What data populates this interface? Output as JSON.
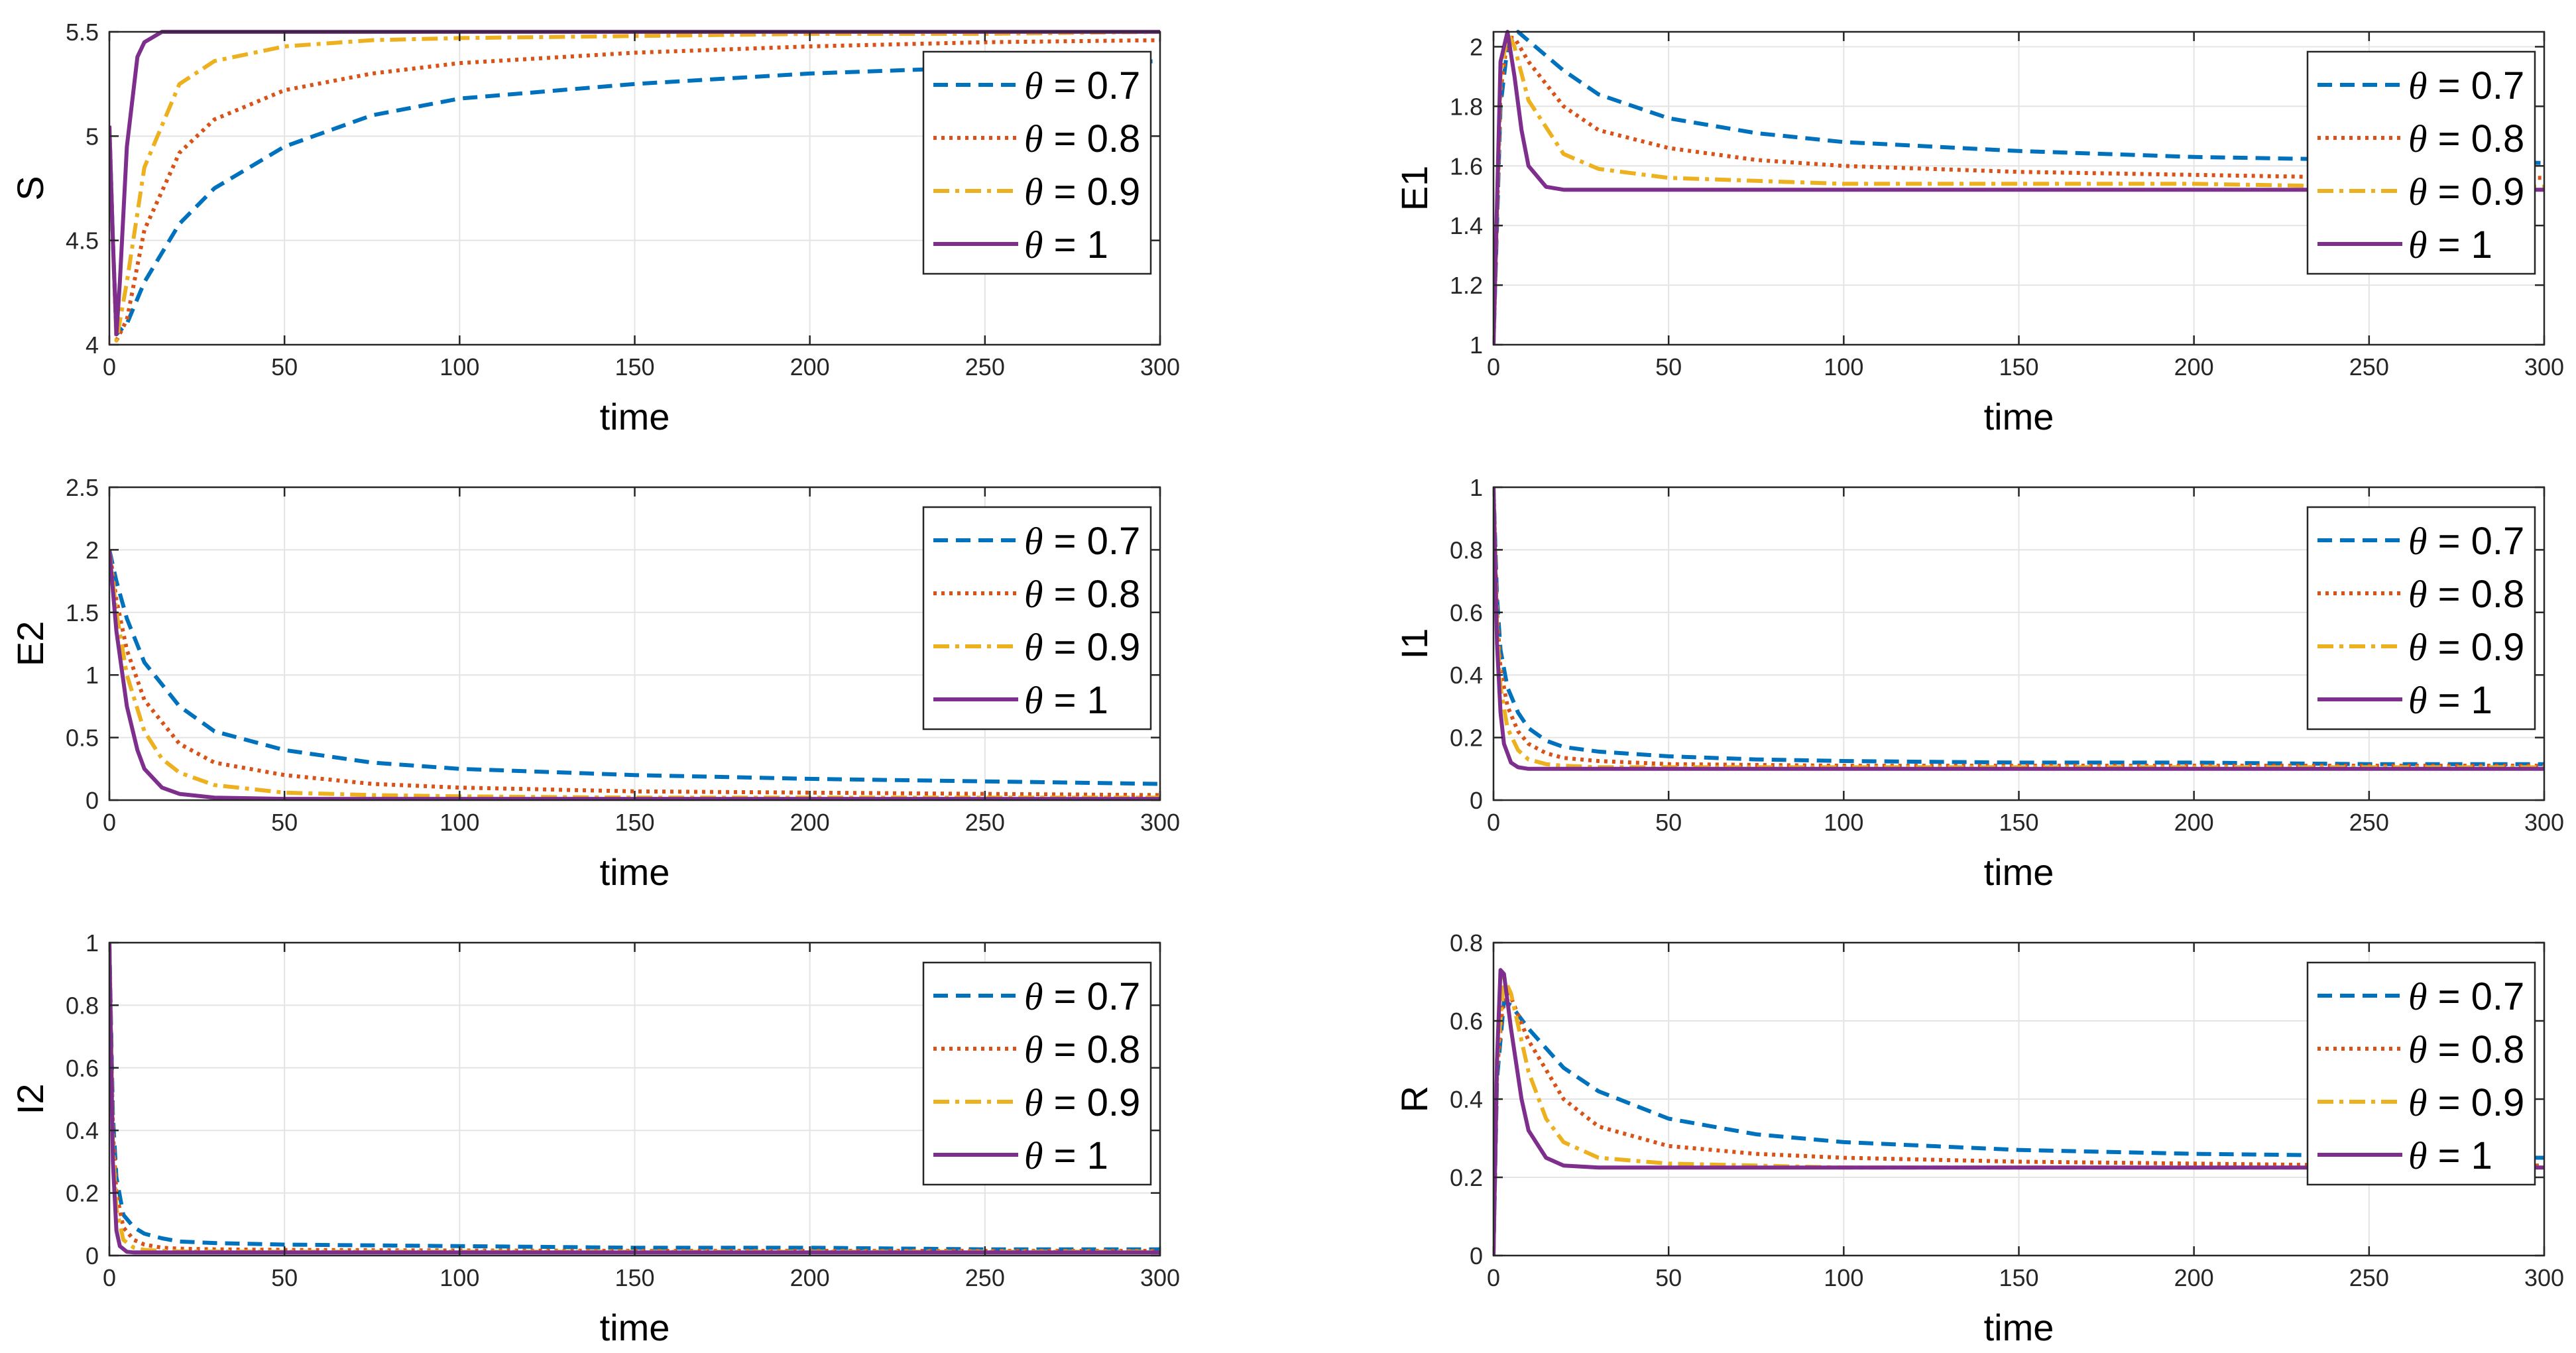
{
  "chart_data": [
    {
      "type": "line",
      "title": "",
      "xlabel": "time",
      "ylabel": "S",
      "xlim": [
        0,
        300
      ],
      "ylim": [
        4,
        5.5
      ],
      "xticks": [
        "0",
        "50",
        "100",
        "150",
        "200",
        "250",
        "300"
      ],
      "yticks": [
        "4",
        "4.5",
        "5",
        "5.5"
      ],
      "grid": true,
      "legend_position": "top-right",
      "series": [
        {
          "name": "θ = 0.7",
          "x": [
            0,
            1,
            2,
            5,
            10,
            20,
            30,
            50,
            75,
            100,
            150,
            200,
            250,
            300
          ],
          "y": [
            5.05,
            4.5,
            4.05,
            4.1,
            4.3,
            4.58,
            4.75,
            4.95,
            5.1,
            5.18,
            5.25,
            5.3,
            5.33,
            5.36
          ]
        },
        {
          "name": "θ = 0.8",
          "x": [
            0,
            1,
            2,
            5,
            10,
            20,
            30,
            50,
            75,
            100,
            150,
            200,
            250,
            300
          ],
          "y": [
            5.05,
            4.5,
            4.02,
            4.12,
            4.55,
            4.92,
            5.08,
            5.22,
            5.3,
            5.35,
            5.4,
            5.43,
            5.45,
            5.46
          ]
        },
        {
          "name": "θ = 0.9",
          "x": [
            0,
            1,
            2,
            5,
            10,
            20,
            30,
            50,
            75,
            100,
            150,
            200,
            250,
            300
          ],
          "y": [
            5.05,
            4.5,
            4.02,
            4.3,
            4.85,
            5.25,
            5.36,
            5.43,
            5.46,
            5.47,
            5.48,
            5.49,
            5.49,
            5.5
          ]
        },
        {
          "name": "θ = 1",
          "x": [
            0,
            1,
            2,
            3,
            5,
            8,
            10,
            15,
            20,
            30,
            50,
            100,
            150,
            200,
            250,
            300
          ],
          "y": [
            5.05,
            4.5,
            4.05,
            4.3,
            4.95,
            5.38,
            5.45,
            5.5,
            5.5,
            5.5,
            5.5,
            5.5,
            5.5,
            5.5,
            5.5,
            5.5
          ]
        }
      ]
    },
    {
      "type": "line",
      "title": "",
      "xlabel": "time",
      "ylabel": "E1",
      "xlim": [
        0,
        300
      ],
      "ylim": [
        1,
        2.05
      ],
      "xticks": [
        "0",
        "50",
        "100",
        "150",
        "200",
        "250",
        "300"
      ],
      "yticks": [
        "1",
        "1.2",
        "1.4",
        "1.6",
        "1.8",
        "2"
      ],
      "grid": true,
      "legend_position": "top-right",
      "series": [
        {
          "name": "θ = 0.7",
          "x": [
            0,
            2,
            4,
            7,
            10,
            20,
            30,
            50,
            75,
            100,
            150,
            200,
            250,
            300
          ],
          "y": [
            1,
            1.8,
            2.0,
            2.05,
            2.02,
            1.92,
            1.84,
            1.76,
            1.71,
            1.68,
            1.65,
            1.63,
            1.62,
            1.61
          ]
        },
        {
          "name": "θ = 0.8",
          "x": [
            0,
            2,
            4,
            6,
            10,
            20,
            30,
            50,
            75,
            100,
            150,
            200,
            250,
            300
          ],
          "y": [
            1,
            1.85,
            2.03,
            2.03,
            1.95,
            1.8,
            1.72,
            1.66,
            1.62,
            1.6,
            1.58,
            1.57,
            1.56,
            1.56
          ]
        },
        {
          "name": "θ = 0.9",
          "x": [
            0,
            2,
            4,
            6,
            10,
            20,
            30,
            50,
            75,
            100,
            150,
            200,
            250,
            300
          ],
          "y": [
            1,
            1.9,
            2.05,
            2.0,
            1.82,
            1.64,
            1.59,
            1.56,
            1.55,
            1.54,
            1.54,
            1.54,
            1.53,
            1.53
          ]
        },
        {
          "name": "θ = 1",
          "x": [
            0,
            2,
            4,
            6,
            8,
            10,
            15,
            20,
            30,
            50,
            100,
            150,
            200,
            250,
            300
          ],
          "y": [
            1,
            1.95,
            2.05,
            1.9,
            1.72,
            1.6,
            1.53,
            1.52,
            1.52,
            1.52,
            1.52,
            1.52,
            1.52,
            1.52,
            1.52
          ]
        }
      ]
    },
    {
      "type": "line",
      "title": "",
      "xlabel": "time",
      "ylabel": "E2",
      "xlim": [
        0,
        300
      ],
      "ylim": [
        0,
        2.5
      ],
      "xticks": [
        "0",
        "50",
        "100",
        "150",
        "200",
        "250",
        "300"
      ],
      "yticks": [
        "0",
        "0.5",
        "1",
        "1.5",
        "2",
        "2.5"
      ],
      "grid": true,
      "legend_position": "top-right",
      "series": [
        {
          "name": "θ = 0.7",
          "x": [
            0,
            2,
            5,
            10,
            20,
            30,
            50,
            75,
            100,
            150,
            200,
            250,
            300
          ],
          "y": [
            2,
            1.75,
            1.45,
            1.1,
            0.75,
            0.55,
            0.4,
            0.3,
            0.25,
            0.2,
            0.17,
            0.15,
            0.13
          ]
        },
        {
          "name": "θ = 0.8",
          "x": [
            0,
            2,
            5,
            10,
            20,
            30,
            50,
            75,
            100,
            150,
            200,
            250,
            300
          ],
          "y": [
            2,
            1.6,
            1.2,
            0.8,
            0.45,
            0.3,
            0.2,
            0.13,
            0.1,
            0.07,
            0.06,
            0.05,
            0.04
          ]
        },
        {
          "name": "θ = 0.9",
          "x": [
            0,
            2,
            5,
            10,
            15,
            20,
            30,
            50,
            75,
            100,
            150,
            200,
            250,
            300
          ],
          "y": [
            2,
            1.5,
            1.0,
            0.55,
            0.33,
            0.22,
            0.12,
            0.06,
            0.04,
            0.03,
            0.02,
            0.02,
            0.02,
            0.02
          ]
        },
        {
          "name": "θ = 1",
          "x": [
            0,
            2,
            5,
            8,
            10,
            15,
            20,
            30,
            50,
            100,
            150,
            200,
            250,
            300
          ],
          "y": [
            2,
            1.35,
            0.75,
            0.4,
            0.25,
            0.1,
            0.05,
            0.02,
            0.01,
            0.01,
            0.01,
            0.01,
            0.01,
            0.01
          ]
        }
      ]
    },
    {
      "type": "line",
      "title": "",
      "xlabel": "time",
      "ylabel": "I1",
      "xlim": [
        0,
        300
      ],
      "ylim": [
        0,
        1
      ],
      "xticks": [
        "0",
        "50",
        "100",
        "150",
        "200",
        "250",
        "300"
      ],
      "yticks": [
        "0",
        "0.2",
        "0.4",
        "0.6",
        "0.8",
        "1"
      ],
      "grid": true,
      "legend_position": "top-right",
      "series": [
        {
          "name": "θ = 0.7",
          "x": [
            0,
            1,
            2,
            4,
            7,
            10,
            15,
            20,
            30,
            50,
            75,
            100,
            150,
            200,
            250,
            300
          ],
          "y": [
            1,
            0.65,
            0.48,
            0.36,
            0.28,
            0.23,
            0.19,
            0.17,
            0.155,
            0.14,
            0.13,
            0.125,
            0.12,
            0.12,
            0.115,
            0.115
          ]
        },
        {
          "name": "θ = 0.8",
          "x": [
            0,
            1,
            2,
            4,
            7,
            10,
            15,
            20,
            30,
            50,
            100,
            150,
            200,
            250,
            300
          ],
          "y": [
            1,
            0.6,
            0.42,
            0.3,
            0.22,
            0.18,
            0.15,
            0.135,
            0.125,
            0.115,
            0.11,
            0.11,
            0.11,
            0.11,
            0.11
          ]
        },
        {
          "name": "θ = 0.9",
          "x": [
            0,
            1,
            2,
            4,
            7,
            10,
            15,
            20,
            30,
            50,
            100,
            150,
            200,
            250,
            300
          ],
          "y": [
            1,
            0.55,
            0.36,
            0.23,
            0.16,
            0.13,
            0.115,
            0.11,
            0.105,
            0.105,
            0.105,
            0.105,
            0.105,
            0.105,
            0.105
          ]
        },
        {
          "name": "θ = 1",
          "x": [
            0,
            1,
            2,
            3,
            5,
            7,
            10,
            15,
            20,
            50,
            100,
            150,
            200,
            250,
            300
          ],
          "y": [
            1,
            0.5,
            0.28,
            0.18,
            0.12,
            0.105,
            0.1,
            0.1,
            0.1,
            0.1,
            0.1,
            0.1,
            0.1,
            0.1,
            0.1
          ]
        }
      ]
    },
    {
      "type": "line",
      "title": "",
      "xlabel": "time",
      "ylabel": "I2",
      "xlim": [
        0,
        300
      ],
      "ylim": [
        0,
        1
      ],
      "xticks": [
        "0",
        "50",
        "100",
        "150",
        "200",
        "250",
        "300"
      ],
      "yticks": [
        "0",
        "0.2",
        "0.4",
        "0.6",
        "0.8",
        "1"
      ],
      "grid": true,
      "legend_position": "top-right",
      "series": [
        {
          "name": "θ = 0.7",
          "x": [
            0,
            1,
            2,
            4,
            7,
            10,
            15,
            20,
            30,
            50,
            100,
            150,
            200,
            250,
            300
          ],
          "y": [
            1,
            0.45,
            0.25,
            0.13,
            0.09,
            0.07,
            0.055,
            0.045,
            0.04,
            0.035,
            0.03,
            0.025,
            0.025,
            0.02,
            0.02
          ]
        },
        {
          "name": "θ = 0.8",
          "x": [
            0,
            1,
            2,
            4,
            7,
            10,
            15,
            20,
            30,
            50,
            100,
            150,
            200,
            250,
            300
          ],
          "y": [
            1,
            0.4,
            0.2,
            0.09,
            0.05,
            0.035,
            0.025,
            0.022,
            0.02,
            0.018,
            0.016,
            0.015,
            0.015,
            0.015,
            0.015
          ]
        },
        {
          "name": "θ = 0.9",
          "x": [
            0,
            1,
            2,
            4,
            7,
            10,
            15,
            20,
            50,
            100,
            150,
            200,
            250,
            300
          ],
          "y": [
            1,
            0.35,
            0.15,
            0.05,
            0.025,
            0.018,
            0.015,
            0.013,
            0.012,
            0.012,
            0.012,
            0.012,
            0.012,
            0.012
          ]
        },
        {
          "name": "θ = 1",
          "x": [
            0,
            1,
            2,
            3,
            5,
            7,
            10,
            20,
            50,
            100,
            150,
            200,
            250,
            300
          ],
          "y": [
            1,
            0.3,
            0.08,
            0.03,
            0.012,
            0.01,
            0.01,
            0.01,
            0.01,
            0.01,
            0.01,
            0.01,
            0.01,
            0.01
          ]
        }
      ]
    },
    {
      "type": "line",
      "title": "",
      "xlabel": "time",
      "ylabel": "R",
      "xlim": [
        0,
        300
      ],
      "ylim": [
        0,
        0.8
      ],
      "xticks": [
        "0",
        "50",
        "100",
        "150",
        "200",
        "250",
        "300"
      ],
      "yticks": [
        "0",
        "0.2",
        "0.4",
        "0.6",
        "0.8"
      ],
      "grid": true,
      "legend_position": "top-right",
      "series": [
        {
          "name": "θ = 0.7",
          "x": [
            0,
            1,
            3,
            5,
            10,
            20,
            30,
            50,
            75,
            100,
            150,
            200,
            250,
            300
          ],
          "y": [
            0,
            0.45,
            0.65,
            0.64,
            0.58,
            0.48,
            0.42,
            0.35,
            0.31,
            0.29,
            0.27,
            0.26,
            0.255,
            0.25
          ]
        },
        {
          "name": "θ = 0.8",
          "x": [
            0,
            1,
            3,
            5,
            10,
            20,
            30,
            50,
            75,
            100,
            150,
            200,
            250,
            300
          ],
          "y": [
            0,
            0.47,
            0.68,
            0.66,
            0.55,
            0.4,
            0.33,
            0.28,
            0.26,
            0.25,
            0.24,
            0.235,
            0.23,
            0.23
          ]
        },
        {
          "name": "θ = 0.9",
          "x": [
            0,
            1,
            3,
            5,
            10,
            15,
            20,
            30,
            50,
            75,
            100,
            150,
            200,
            250,
            300
          ],
          "y": [
            0,
            0.5,
            0.71,
            0.67,
            0.47,
            0.35,
            0.29,
            0.25,
            0.235,
            0.23,
            0.225,
            0.225,
            0.225,
            0.225,
            0.225
          ]
        },
        {
          "name": "θ = 1",
          "x": [
            0,
            1,
            2,
            3,
            5,
            8,
            10,
            15,
            20,
            30,
            50,
            100,
            150,
            200,
            250,
            300
          ],
          "y": [
            0,
            0.5,
            0.73,
            0.72,
            0.58,
            0.4,
            0.32,
            0.25,
            0.23,
            0.225,
            0.225,
            0.225,
            0.225,
            0.225,
            0.225,
            0.225
          ]
        }
      ]
    }
  ],
  "legend": {
    "symbol": "θ",
    "entries": [
      " = 0.7",
      " = 0.8",
      " = 0.9",
      " = 1"
    ]
  },
  "styles": {
    "colors": [
      "#0072BD",
      "#D95319",
      "#EDB120",
      "#7E2F8E"
    ],
    "dash_patterns": [
      "22 12",
      "5 7",
      "24 9 6 9",
      ""
    ]
  }
}
